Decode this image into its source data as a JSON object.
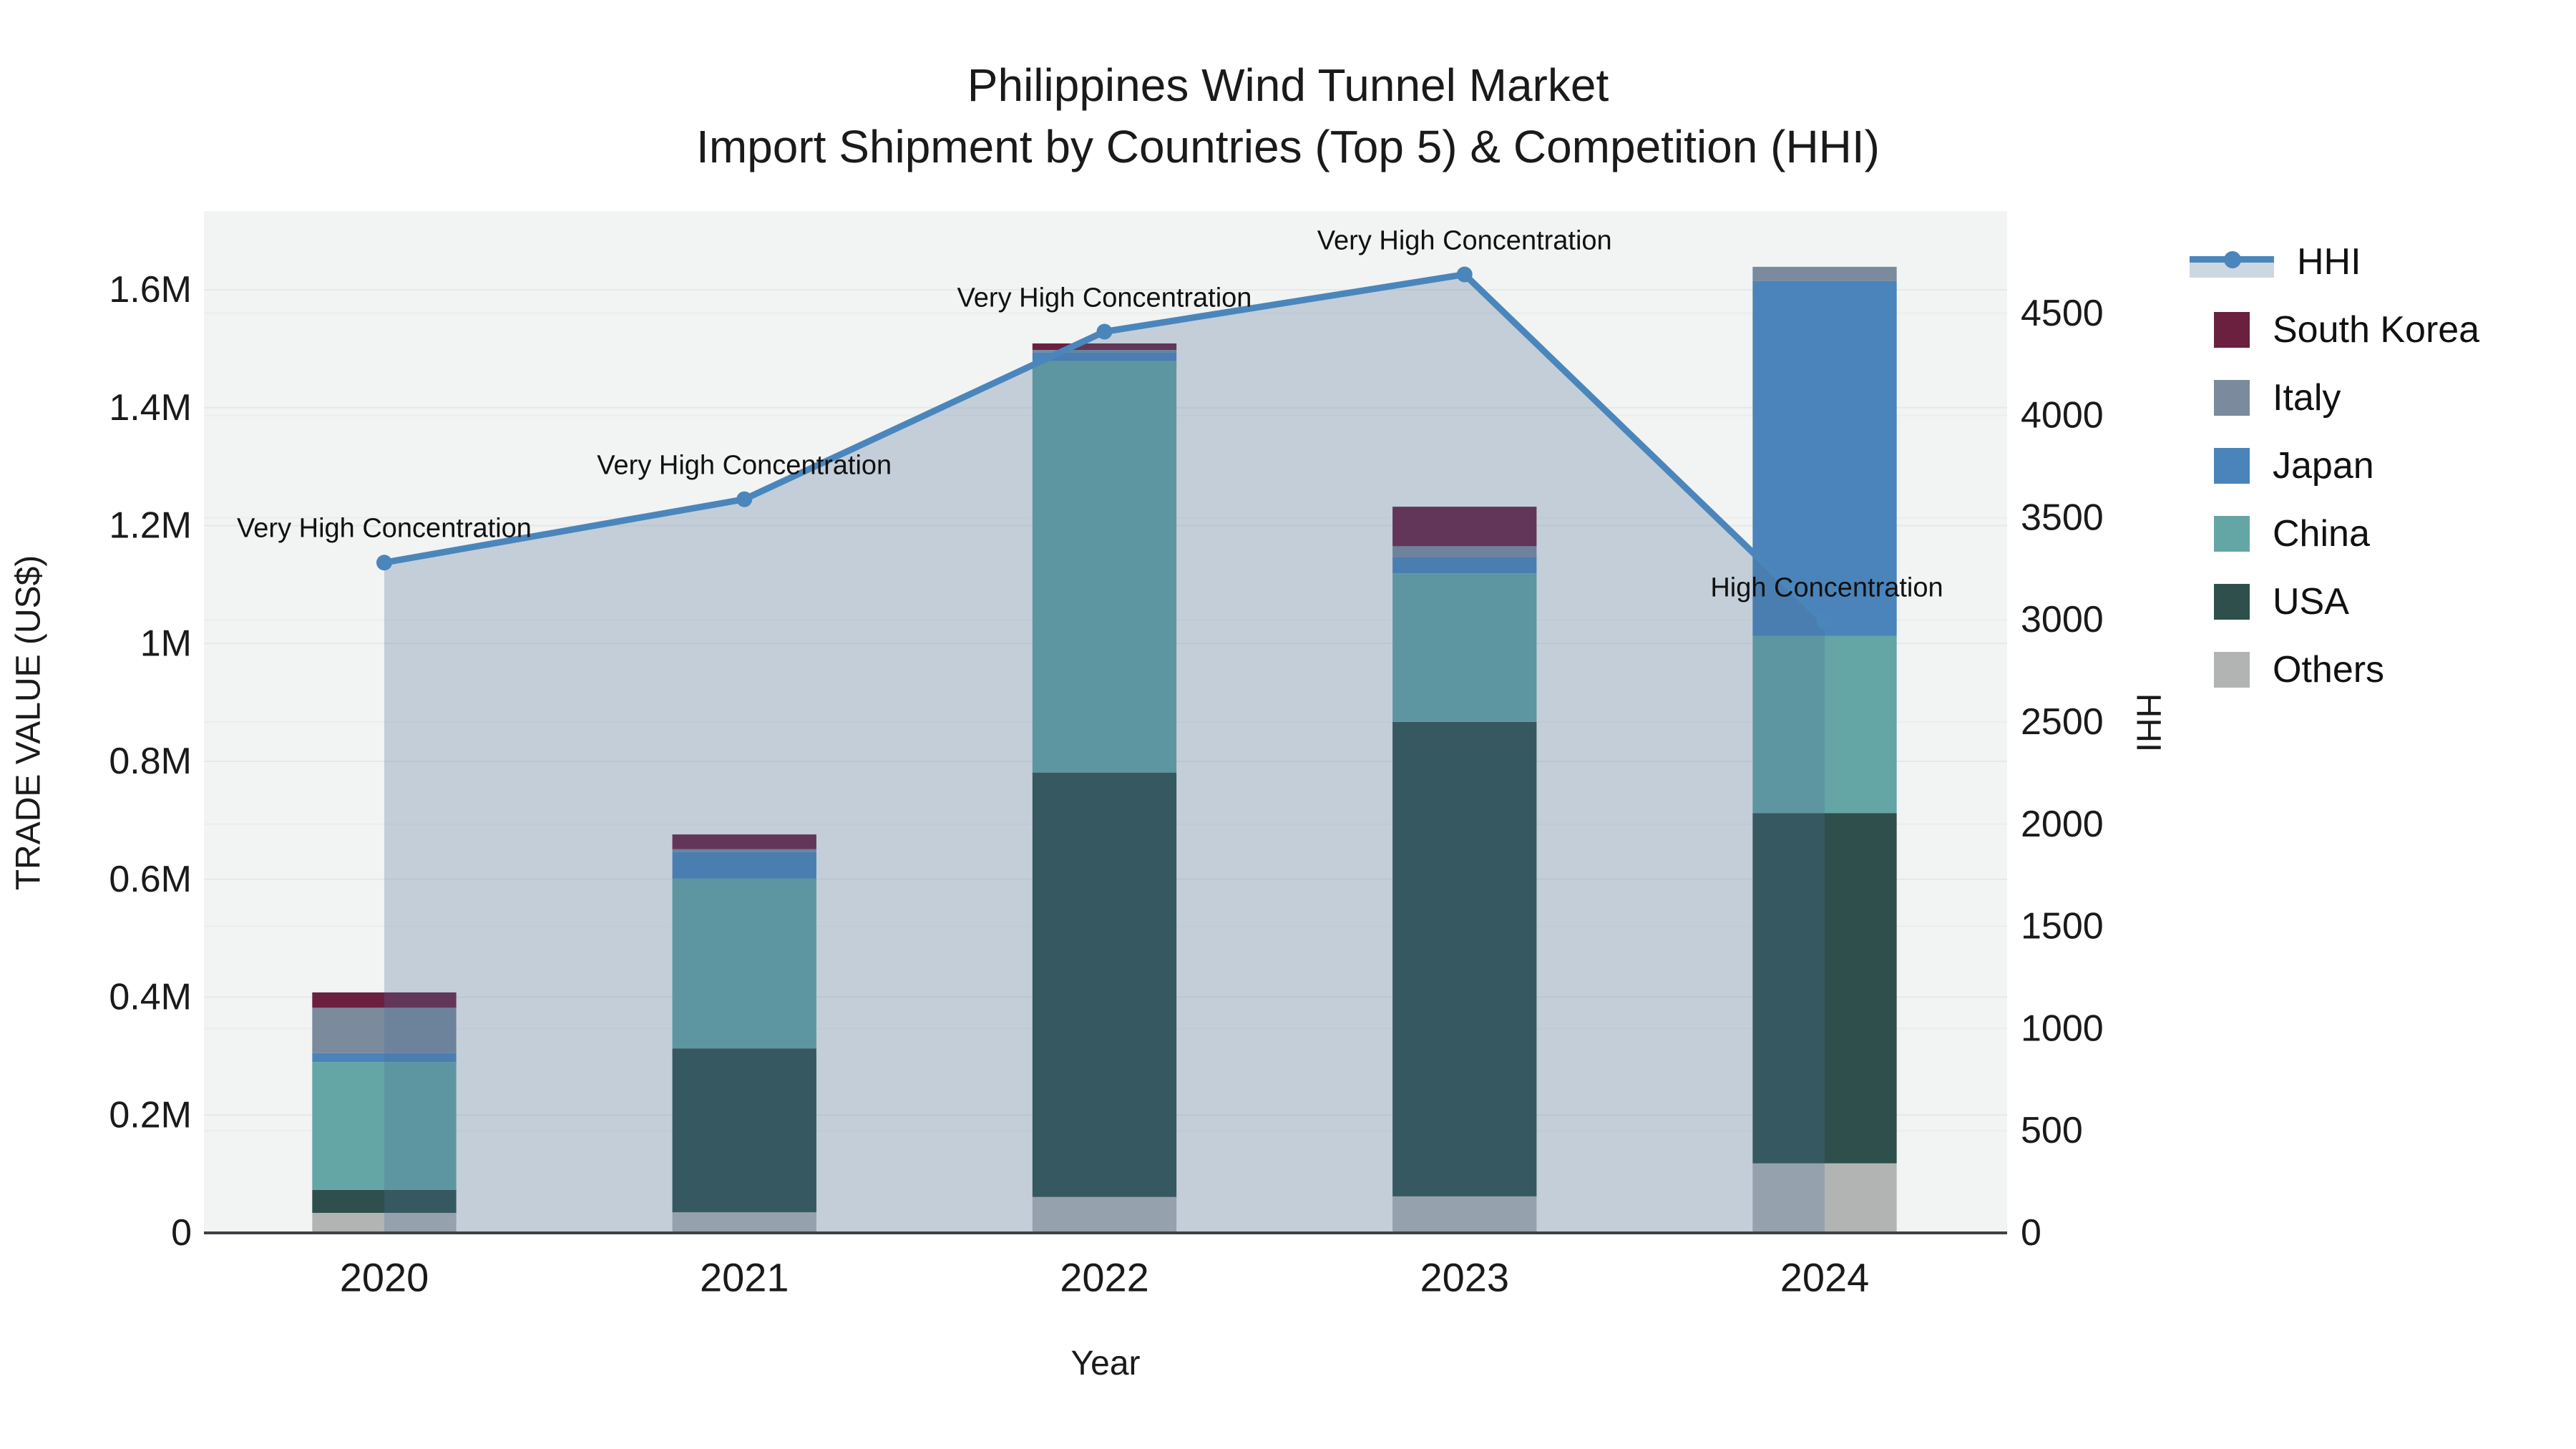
{
  "figure": {
    "title_line1": "Philippines Wind Tunnel Market",
    "title_line2": "Import Shipment by Countries (Top 5) & Competition (HHI)"
  },
  "chart_data": {
    "type": "bar",
    "subtype": "stacked-bars-with-hhi-line-overlay",
    "title": "Philippines Wind Tunnel Market Import Shipment by Countries (Top 5) & Competition (HHI)",
    "categories": [
      "2020",
      "2021",
      "2022",
      "2023",
      "2024"
    ],
    "xlabel": "Year",
    "y_left": {
      "label": "TRADE VALUE (US$)",
      "tick_labels": [
        "0",
        "0.2M",
        "0.4M",
        "0.6M",
        "0.8M",
        "1M",
        "1.2M",
        "1.4M",
        "1.6M"
      ],
      "tick_values": [
        0,
        200000,
        400000,
        600000,
        800000,
        1000000,
        1200000,
        1400000,
        1600000
      ],
      "axis_max": 1733000
    },
    "y_right": {
      "label": "HHI",
      "tick_labels": [
        "0",
        "500",
        "1000",
        "1500",
        "2000",
        "2500",
        "3000",
        "3500",
        "4000",
        "4500"
      ],
      "tick_values": [
        0,
        500,
        1000,
        1500,
        2000,
        2500,
        3000,
        3500,
        4000,
        4500
      ],
      "axis_max": 5000
    },
    "bar_stack_order_bottom_to_top": [
      "Others",
      "USA",
      "China",
      "Japan",
      "Italy",
      "South Korea"
    ],
    "series": [
      {
        "name": "Others",
        "color": "#b2b4b4",
        "values": [
          34000,
          35000,
          61000,
          62000,
          118000
        ]
      },
      {
        "name": "USA",
        "color": "#2e4f4b",
        "values": [
          39000,
          278000,
          720000,
          805000,
          594000
        ]
      },
      {
        "name": "China",
        "color": "#64a5a6",
        "values": [
          217000,
          288000,
          698000,
          252000,
          301000
        ]
      },
      {
        "name": "Japan",
        "color": "#4a84ba",
        "values": [
          15000,
          45000,
          15000,
          27000,
          602000
        ]
      },
      {
        "name": "Italy",
        "color": "#7b8a9d",
        "values": [
          77000,
          5000,
          4000,
          19000,
          24000
        ]
      },
      {
        "name": "South Korea",
        "color": "#6b2040",
        "values": [
          26000,
          25000,
          11000,
          67000,
          0
        ]
      }
    ],
    "line_series": {
      "name": "HHI",
      "color": "#4a86bb",
      "fill_color": "rgba(74,110,150,0.28)",
      "values": [
        3280,
        3590,
        4410,
        4690,
        2990
      ]
    },
    "annotations": [
      {
        "x": "2020",
        "text": "Very High Concentration"
      },
      {
        "x": "2021",
        "text": "Very High Concentration"
      },
      {
        "x": "2022",
        "text": "Very High Concentration"
      },
      {
        "x": "2023",
        "text": "Very High Concentration"
      },
      {
        "x": "2024",
        "text": "High Concentration"
      }
    ],
    "legend": [
      {
        "label": "HHI",
        "type": "line",
        "color": "#4a86bb",
        "fill_color": "rgba(74,110,150,0.28)"
      },
      {
        "label": "South Korea",
        "type": "swatch",
        "color": "#6b2040"
      },
      {
        "label": "Italy",
        "type": "swatch",
        "color": "#7b8a9d"
      },
      {
        "label": "Japan",
        "type": "swatch",
        "color": "#4a84ba"
      },
      {
        "label": "China",
        "type": "swatch",
        "color": "#64a5a6"
      },
      {
        "label": "USA",
        "type": "swatch",
        "color": "#2e4f4b"
      },
      {
        "label": "Others",
        "type": "swatch",
        "color": "#b2b4b4"
      }
    ],
    "layout_hints": {
      "plot_bg": "#f2f3f3",
      "grid": true,
      "grid_color_left": "#e6e8e8",
      "grid_color_right": "#ebeded",
      "x_axis_line_color": "#3d4144",
      "legend_position": "right",
      "bar_width_fraction": 0.4
    }
  }
}
